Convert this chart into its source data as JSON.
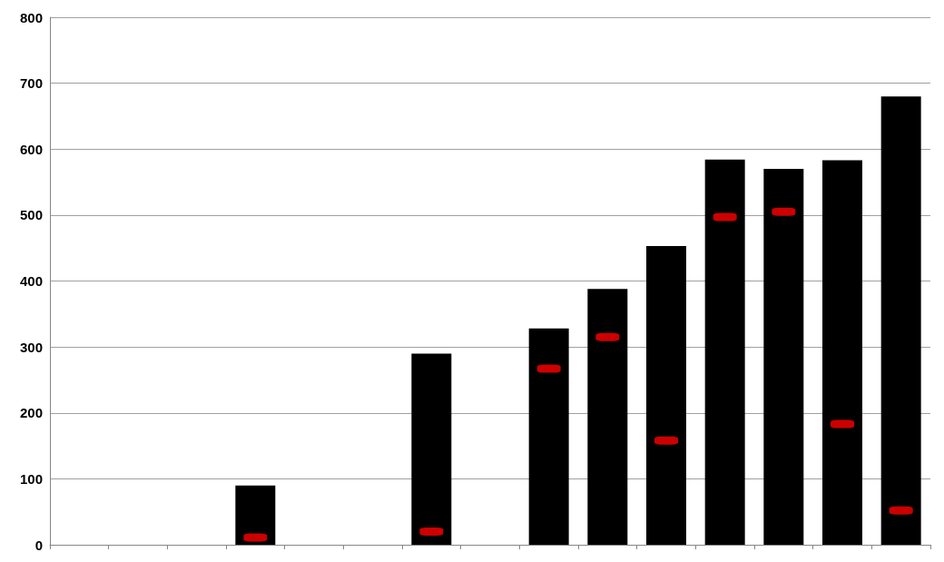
{
  "chart_data": {
    "type": "bar",
    "categories": [
      null,
      null,
      null,
      null,
      null,
      null,
      null,
      null,
      null,
      null,
      null,
      null,
      null,
      null,
      null
    ],
    "series": [
      {
        "color": "#000000",
        "values": [
          null,
          null,
          null,
          90,
          null,
          null,
          290,
          null,
          328,
          388,
          453,
          584,
          570,
          583,
          680
        ]
      },
      {
        "type": "scatter",
        "color": "#ff0000",
        "values": [
          null,
          null,
          null,
          11,
          null,
          null,
          20,
          null,
          267,
          315,
          158,
          497,
          505,
          183,
          52
        ]
      }
    ],
    "ylim": [
      0,
      800
    ],
    "yticks": [
      0,
      100,
      200,
      300,
      400,
      500,
      600,
      700,
      800
    ],
    "grid": "y",
    "tick_labels": "y"
  }
}
